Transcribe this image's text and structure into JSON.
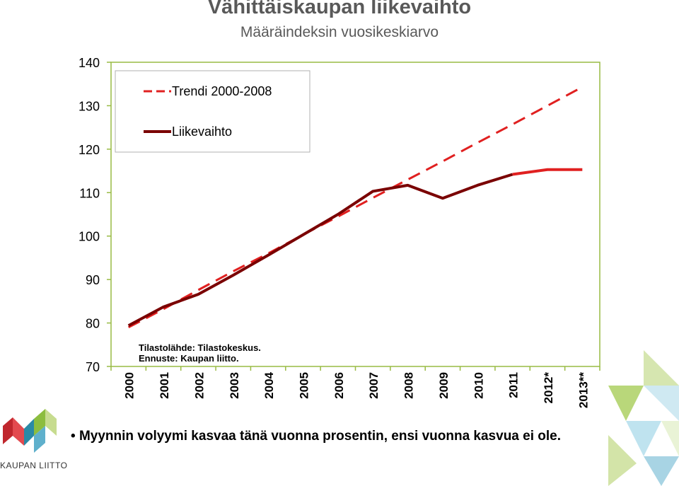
{
  "chart_data": {
    "type": "line",
    "title": "Vähittäiskaupan liikevaihto",
    "subtitle": "Määräindeksin vuosikeskiarvo",
    "categories": [
      "2000",
      "2001",
      "2002",
      "2003",
      "2004",
      "2005",
      "2006",
      "2007",
      "2008",
      "2009",
      "2010",
      "2011",
      "2012*",
      "2013**"
    ],
    "ylim": [
      70,
      140
    ],
    "yticks": [
      70,
      80,
      90,
      100,
      110,
      120,
      130,
      140
    ],
    "grid": false,
    "legend_position": "top-left",
    "series": [
      {
        "name": "Trendi 2000-2008",
        "style": "dashed",
        "color": "#e02020",
        "values": [
          79.0,
          83.2,
          87.6,
          91.9,
          96.0,
          100.3,
          104.5,
          108.8,
          113.0,
          117.2,
          121.5,
          125.7,
          130.0,
          134.3
        ]
      },
      {
        "name": "Liikevaihto",
        "style": "solid",
        "color": "#7a0000",
        "forecast_color": "#e02020",
        "values": [
          79.4,
          83.7,
          86.6,
          91.0,
          95.6,
          100.3,
          105.0,
          110.3,
          111.7,
          108.7,
          111.7,
          114.2,
          115.3,
          115.3
        ]
      }
    ],
    "annotation": [
      "Tilastolähde: Tilastokeskus.",
      "Ennuste: Kaupan liitto."
    ]
  },
  "bullet_text": "Myynnin volyymi kasvaa tänä vuonna prosentin, ensi vuonna kasvua ei ole.",
  "logo_text": "KAUPAN LIITTO",
  "colors": {
    "trend": "#e02020",
    "actual": "#7a0000",
    "axis": "#99bb44"
  }
}
